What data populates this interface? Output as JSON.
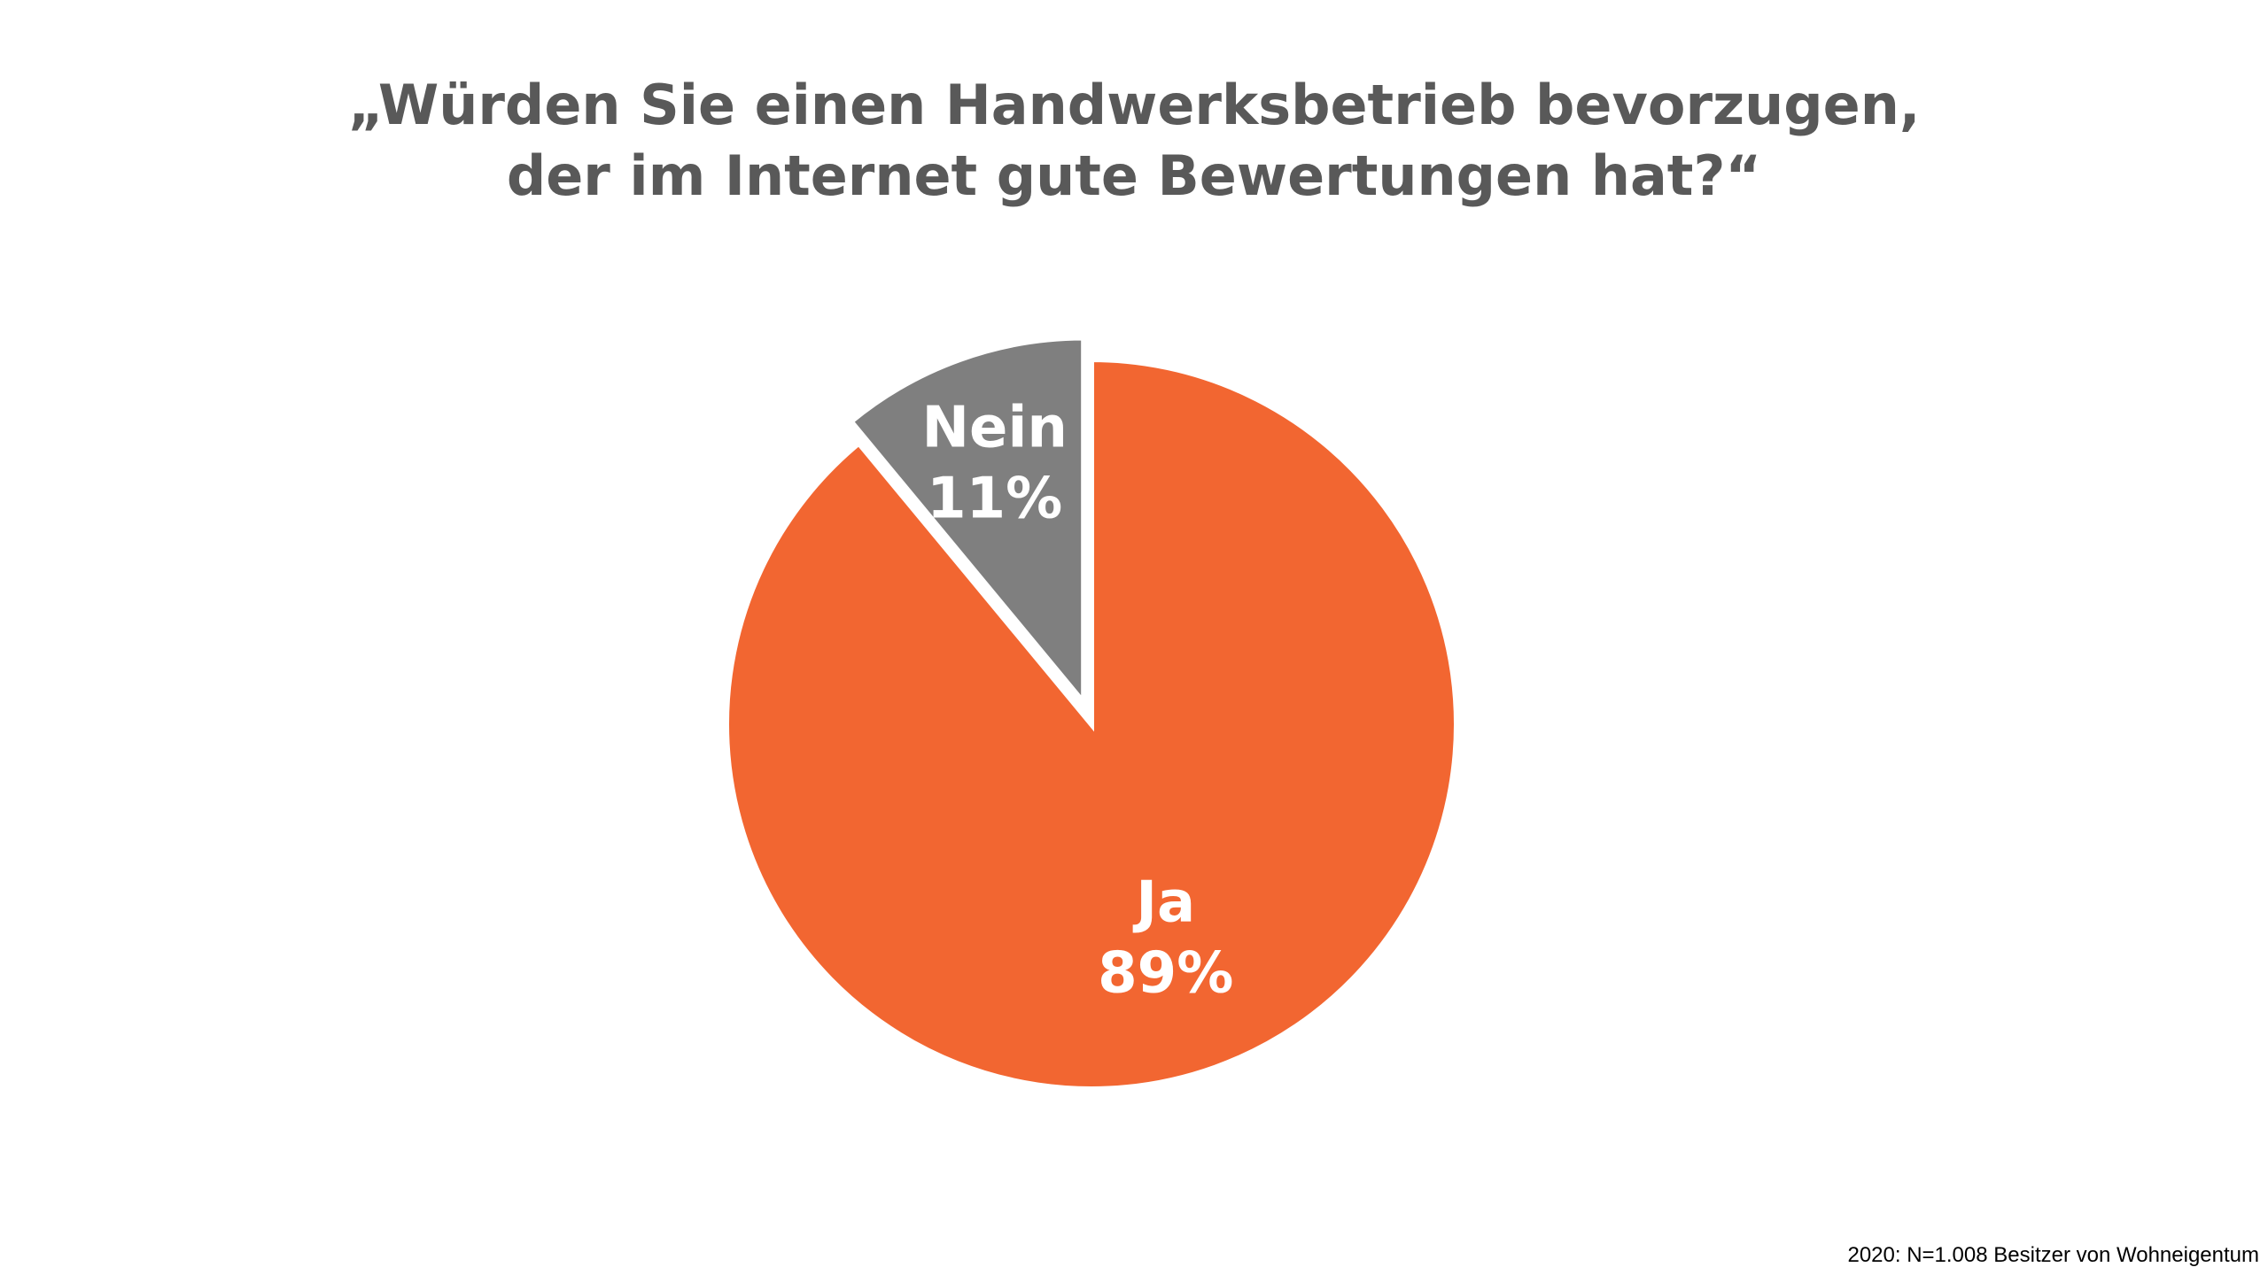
{
  "chart_data": {
    "type": "pie",
    "title_lines": [
      "„Würden Sie einen Handwerksbetrieb bevorzugen,",
      "der im Internet gute Bewertungen hat?“"
    ],
    "slices": [
      {
        "label": "Ja",
        "value": 89,
        "value_label": "89%",
        "color": "#F26631"
      },
      {
        "label": "Nein",
        "value": 11,
        "value_label": "11%",
        "color": "#7F7F7F",
        "exploded": true
      }
    ],
    "start_angle": "12 o'clock",
    "direction": "clockwise",
    "legend": "none",
    "grid": false
  },
  "footnote": "2020: N=1.008 Besitzer von Wohneigentum"
}
